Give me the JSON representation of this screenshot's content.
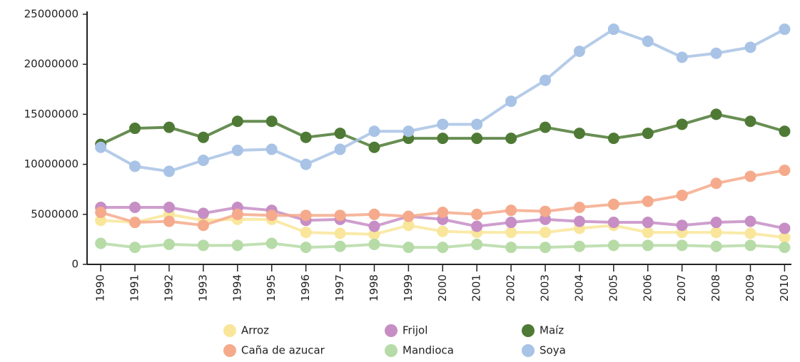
{
  "chart_data": {
    "type": "line",
    "x": [
      1990,
      1991,
      1992,
      1993,
      1994,
      1995,
      1996,
      1997,
      1998,
      1999,
      2000,
      2001,
      2002,
      2003,
      2004,
      2005,
      2006,
      2007,
      2008,
      2009,
      2010
    ],
    "xlim": [
      1989.6,
      2010.2
    ],
    "xticks": [
      1990,
      1991,
      1992,
      1993,
      1994,
      1995,
      1996,
      1997,
      1998,
      1999,
      2000,
      2001,
      2002,
      2003,
      2004,
      2005,
      2006,
      2007,
      2008,
      2009,
      2010
    ],
    "ylim": [
      0,
      25000000
    ],
    "yticks": [
      0,
      5000000,
      10000000,
      15000000,
      20000000,
      25000000
    ],
    "series": [
      {
        "name": "Arroz",
        "color": "#f9e69a",
        "values": [
          4400000,
          4200000,
          5000000,
          4400000,
          4500000,
          4500000,
          3200000,
          3100000,
          3000000,
          3900000,
          3300000,
          3200000,
          3200000,
          3200000,
          3600000,
          3900000,
          3200000,
          3200000,
          3200000,
          3100000,
          2700000
        ]
      },
      {
        "name": "Frijol",
        "color": "#c68ec5",
        "values": [
          5700000,
          5700000,
          5700000,
          5100000,
          5700000,
          5400000,
          4400000,
          4500000,
          3800000,
          4800000,
          4500000,
          3800000,
          4200000,
          4500000,
          4300000,
          4200000,
          4200000,
          3900000,
          4200000,
          4300000,
          3600000
        ]
      },
      {
        "name": "Maíz",
        "color": "#4e7a35",
        "values": [
          12000000,
          13600000,
          13700000,
          12700000,
          14300000,
          14300000,
          12700000,
          13100000,
          11700000,
          12600000,
          12600000,
          12600000,
          12600000,
          13700000,
          13100000,
          12600000,
          13100000,
          14000000,
          15000000,
          14300000,
          13300000
        ]
      },
      {
        "name": "Caña de azucar",
        "color": "#f5aa8c",
        "values": [
          5200000,
          4200000,
          4300000,
          3900000,
          5000000,
          4900000,
          4900000,
          4900000,
          5000000,
          4800000,
          5200000,
          5000000,
          5400000,
          5300000,
          5700000,
          6000000,
          6300000,
          6900000,
          8100000,
          8800000,
          9400000
        ]
      },
      {
        "name": "Mandioca",
        "color": "#b6dba7",
        "values": [
          2100000,
          1700000,
          2000000,
          1900000,
          1900000,
          2100000,
          1700000,
          1800000,
          2000000,
          1700000,
          1700000,
          2000000,
          1700000,
          1700000,
          1800000,
          1900000,
          1900000,
          1900000,
          1800000,
          1900000,
          1700000
        ]
      },
      {
        "name": "Soya",
        "color": "#a8c3e5",
        "values": [
          11700000,
          9800000,
          9300000,
          10400000,
          11400000,
          11500000,
          10000000,
          11500000,
          13300000,
          13300000,
          14000000,
          14000000,
          16300000,
          18400000,
          21300000,
          23500000,
          22300000,
          20700000,
          21100000,
          21700000,
          23500000
        ]
      }
    ]
  }
}
